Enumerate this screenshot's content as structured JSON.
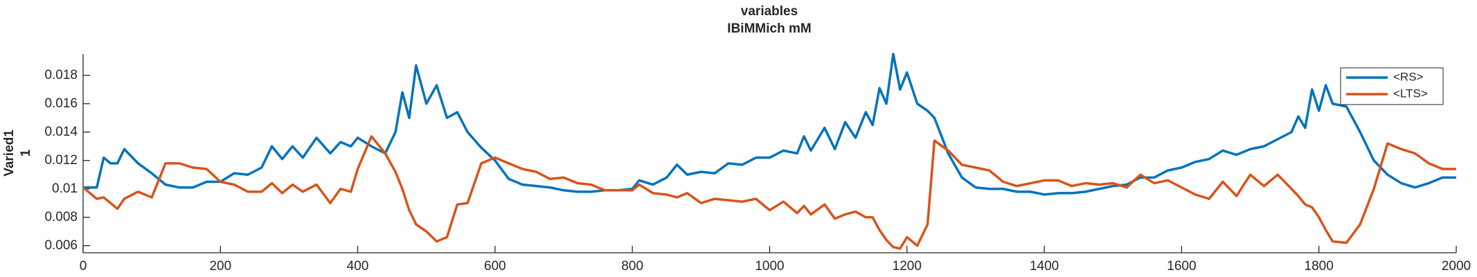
{
  "chart_data": {
    "type": "line",
    "title": "variables",
    "subtitle": "IBiMMich mM",
    "ylabel": [
      "Varied1",
      "1"
    ],
    "x": [
      0,
      20,
      30,
      40,
      50,
      60,
      80,
      100,
      120,
      140,
      160,
      180,
      200,
      220,
      240,
      260,
      275,
      290,
      305,
      320,
      340,
      360,
      375,
      390,
      400,
      420,
      440,
      455,
      465,
      475,
      485,
      500,
      515,
      530,
      545,
      560,
      580,
      600,
      620,
      640,
      660,
      680,
      700,
      720,
      740,
      760,
      780,
      800,
      810,
      830,
      850,
      865,
      880,
      900,
      920,
      940,
      960,
      980,
      1000,
      1020,
      1040,
      1050,
      1060,
      1080,
      1095,
      1110,
      1125,
      1140,
      1150,
      1160,
      1170,
      1180,
      1190,
      1200,
      1215,
      1230,
      1240,
      1260,
      1280,
      1300,
      1320,
      1340,
      1360,
      1380,
      1400,
      1420,
      1440,
      1460,
      1480,
      1500,
      1520,
      1540,
      1560,
      1580,
      1600,
      1620,
      1640,
      1660,
      1680,
      1700,
      1720,
      1740,
      1760,
      1770,
      1780,
      1790,
      1800,
      1810,
      1820,
      1840,
      1860,
      1880,
      1900,
      1920,
      1940,
      1960,
      1980,
      2000
    ],
    "series": [
      {
        "name": "<RS>",
        "color": "#0072bd",
        "values": [
          0.0101,
          0.0101,
          0.0122,
          0.0118,
          0.0118,
          0.0128,
          0.0118,
          0.0111,
          0.0103,
          0.0101,
          0.0101,
          0.0105,
          0.0105,
          0.0111,
          0.011,
          0.0115,
          0.013,
          0.0121,
          0.013,
          0.0122,
          0.0136,
          0.0125,
          0.0133,
          0.013,
          0.0136,
          0.013,
          0.0125,
          0.014,
          0.0168,
          0.015,
          0.0187,
          0.016,
          0.0173,
          0.015,
          0.0154,
          0.014,
          0.0129,
          0.012,
          0.0107,
          0.0103,
          0.0102,
          0.0101,
          0.0099,
          0.0098,
          0.0098,
          0.0099,
          0.0099,
          0.01,
          0.0106,
          0.0103,
          0.0108,
          0.0117,
          0.011,
          0.0112,
          0.0111,
          0.0118,
          0.0117,
          0.0122,
          0.0122,
          0.0127,
          0.0125,
          0.0137,
          0.0127,
          0.0143,
          0.0128,
          0.0147,
          0.0136,
          0.0154,
          0.0145,
          0.0171,
          0.016,
          0.0195,
          0.017,
          0.0182,
          0.016,
          0.0155,
          0.015,
          0.0125,
          0.0108,
          0.0101,
          0.01,
          0.01,
          0.0098,
          0.0098,
          0.0096,
          0.0097,
          0.0097,
          0.0098,
          0.01,
          0.0102,
          0.0103,
          0.0108,
          0.0108,
          0.0113,
          0.0115,
          0.0119,
          0.0121,
          0.0127,
          0.0124,
          0.0128,
          0.013,
          0.0135,
          0.014,
          0.0151,
          0.0143,
          0.017,
          0.0155,
          0.0173,
          0.016,
          0.0158,
          0.014,
          0.012,
          0.011,
          0.0104,
          0.0101,
          0.0104,
          0.0108,
          0.0108
        ]
      },
      {
        "name": "<LTS>",
        "color": "#d95319",
        "values": [
          0.0101,
          0.0093,
          0.0094,
          0.009,
          0.0086,
          0.0093,
          0.0098,
          0.0094,
          0.0118,
          0.0118,
          0.0115,
          0.0114,
          0.0105,
          0.0103,
          0.0098,
          0.0098,
          0.0104,
          0.0097,
          0.0103,
          0.0098,
          0.0103,
          0.009,
          0.01,
          0.0098,
          0.0114,
          0.0137,
          0.0125,
          0.0112,
          0.01,
          0.0085,
          0.0075,
          0.007,
          0.0063,
          0.0066,
          0.0089,
          0.009,
          0.0118,
          0.0122,
          0.0118,
          0.0114,
          0.0112,
          0.0107,
          0.0108,
          0.0104,
          0.0103,
          0.0099,
          0.0099,
          0.0099,
          0.0103,
          0.0097,
          0.0096,
          0.0094,
          0.0097,
          0.009,
          0.0093,
          0.0092,
          0.0091,
          0.0093,
          0.0085,
          0.0091,
          0.0083,
          0.0088,
          0.0082,
          0.0089,
          0.0079,
          0.0082,
          0.0084,
          0.008,
          0.008,
          0.0071,
          0.0064,
          0.0059,
          0.0058,
          0.0066,
          0.006,
          0.0075,
          0.0134,
          0.0127,
          0.0117,
          0.0115,
          0.0113,
          0.0105,
          0.0102,
          0.0104,
          0.0106,
          0.0106,
          0.0102,
          0.0104,
          0.0103,
          0.0104,
          0.0101,
          0.011,
          0.0104,
          0.0106,
          0.0101,
          0.0096,
          0.0093,
          0.0105,
          0.0095,
          0.011,
          0.0102,
          0.011,
          0.01,
          0.0095,
          0.0089,
          0.0087,
          0.008,
          0.0071,
          0.0063,
          0.0062,
          0.0075,
          0.01,
          0.0132,
          0.0128,
          0.0125,
          0.0118,
          0.0114,
          0.0114
        ]
      }
    ],
    "xlim": [
      0,
      2000
    ],
    "xticks": [
      0,
      200,
      400,
      600,
      800,
      1000,
      1200,
      1400,
      1600,
      1800,
      2000
    ],
    "ylim": [
      0.0055,
      0.0195
    ],
    "yticks": [
      0.006,
      0.008,
      0.01,
      0.012,
      0.014,
      0.016,
      0.018
    ],
    "grid": false,
    "legend": "northeast"
  }
}
